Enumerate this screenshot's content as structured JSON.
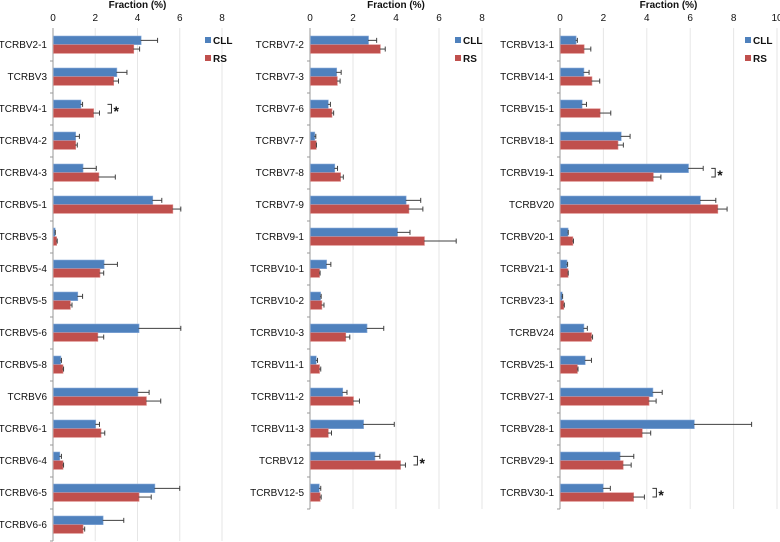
{
  "chart_data": {
    "type": "bar",
    "orientation": "horizontal",
    "colors": {
      "CLL": "#4f81bd",
      "RS": "#c0504d",
      "error_bar": "#404040",
      "grid": "#e6e6e6",
      "axis": "#999999"
    },
    "panels": [
      {
        "title": "Fraction (%)",
        "xlabel": "Fraction (%)",
        "xlim": [
          0,
          8
        ],
        "xticks": [
          0,
          2,
          4,
          6,
          8
        ],
        "legend": [
          "CLL",
          "RS"
        ],
        "legend_position": "top-right",
        "categories": [
          "TCRBV2-1",
          "TCRBV3",
          "TCRBV4-1",
          "TCRBV4-2",
          "TCRBV4-3",
          "TCRBV5-1",
          "TCRBV5-3",
          "TCRBV5-4",
          "TCRBV5-5",
          "TCRBV5-6",
          "TCRBV5-8",
          "TCRBV6",
          "TCRBV6-1",
          "TCRBV6-4",
          "TCRBV6-5",
          "TCRBV6-6"
        ],
        "series": [
          {
            "name": "CLL",
            "values": [
              4.15,
              3.0,
              1.3,
              1.05,
              1.4,
              4.7,
              0.08,
              2.4,
              1.15,
              4.05,
              0.35,
              4.0,
              2.0,
              0.3,
              4.8,
              2.35
            ],
            "errors": [
              0.8,
              0.5,
              0.1,
              0.2,
              0.65,
              0.45,
              0.03,
              0.65,
              0.25,
              2.0,
              0.05,
              0.55,
              0.2,
              0.1,
              1.2,
              1.0
            ]
          },
          {
            "name": "RS",
            "values": [
              3.8,
              2.85,
              1.9,
              1.05,
              2.15,
              5.65,
              0.15,
              2.2,
              0.8,
              2.1,
              0.45,
              4.4,
              2.25,
              0.45,
              4.05,
              1.4
            ],
            "errors": [
              0.3,
              0.25,
              0.3,
              0.1,
              0.8,
              0.4,
              0.05,
              0.2,
              0.1,
              0.3,
              0.05,
              0.7,
              0.2,
              0.05,
              0.6,
              0.1
            ]
          }
        ],
        "significant": [
          "TCRBV4-1"
        ],
        "significance_marker": "*"
      },
      {
        "title": "Fraction (%)",
        "xlabel": "Fraction (%)",
        "xlim": [
          0,
          8
        ],
        "xticks": [
          0,
          2,
          4,
          6,
          8
        ],
        "legend": [
          "CLL",
          "RS"
        ],
        "legend_position": "top-right",
        "categories": [
          "TCRBV7-2",
          "TCRBV7-3",
          "TCRBV7-6",
          "TCRBV7-7",
          "TCRBV7-8",
          "TCRBV7-9",
          "TCRBV9-1",
          "TCRBV10-1",
          "TCRBV10-2",
          "TCRBV10-3",
          "TCRBV11-1",
          "TCRBV11-2",
          "TCRBV11-3",
          "TCRBV12",
          "TCRBV12-5"
        ],
        "series": [
          {
            "name": "CLL",
            "values": [
              2.7,
              1.22,
              0.83,
              0.2,
              1.13,
              4.45,
              4.05,
              0.75,
              0.47,
              2.63,
              0.27,
              1.5,
              2.47,
              3.0,
              0.41
            ],
            "errors": [
              0.4,
              0.23,
              0.12,
              0.07,
              0.15,
              0.7,
              0.6,
              0.22,
              0.05,
              0.8,
              0.08,
              0.22,
              1.45,
              0.25,
              0.09
            ]
          },
          {
            "name": "RS",
            "values": [
              3.25,
              1.25,
              1.0,
              0.27,
              1.4,
              4.58,
              5.3,
              0.42,
              0.53,
              1.64,
              0.42,
              2.0,
              0.83,
              4.19,
              0.45
            ],
            "errors": [
              0.25,
              0.15,
              0.1,
              0.03,
              0.15,
              0.67,
              1.5,
              0.05,
              0.12,
              0.21,
              0.08,
              0.3,
              0.17,
              0.25,
              0.07
            ]
          }
        ],
        "significant": [
          "TCRBV12"
        ],
        "significance_marker": "*"
      },
      {
        "title": "Fraction (%)",
        "xlabel": "Fraction (%)",
        "xlim": [
          0,
          10
        ],
        "xticks": [
          0,
          2,
          4,
          6,
          8,
          10
        ],
        "legend": [
          "CLL",
          "RS"
        ],
        "legend_position": "top-right",
        "categories": [
          "TCRBV13-1",
          "TCRBV14-1",
          "TCRBV15-1",
          "TCRBV18-1",
          "TCRBV19-1",
          "TCRBV20",
          "TCRBV20-1",
          "TCRBV21-1",
          "TCRBV23-1",
          "TCRBV24",
          "TCRBV25-1",
          "TCRBV27-1",
          "TCRBV28-1",
          "TCRBV29-1",
          "TCRBV30-1"
        ],
        "series": [
          {
            "name": "CLL",
            "values": [
              0.72,
              1.08,
              1.0,
              2.8,
              5.9,
              6.45,
              0.35,
              0.3,
              0.08,
              1.08,
              1.14,
              4.26,
              6.17,
              2.75,
              1.97
            ],
            "errors": [
              0.08,
              0.26,
              0.22,
              0.43,
              0.7,
              0.73,
              0.03,
              0.05,
              0.04,
              0.18,
              0.31,
              0.45,
              2.66,
              0.65,
              0.35
            ]
          },
          {
            "name": "RS",
            "values": [
              1.09,
              1.45,
              1.83,
              2.65,
              4.28,
              7.25,
              0.57,
              0.35,
              0.15,
              1.43,
              0.78,
              4.08,
              3.77,
              2.89,
              3.37
            ],
            "errors": [
              0.33,
              0.38,
              0.51,
              0.27,
              0.37,
              0.45,
              0.05,
              0.03,
              0.05,
              0.07,
              0.05,
              0.35,
              0.41,
              0.39,
              0.52
            ]
          }
        ],
        "significant": [
          "TCRBV19-1",
          "TCRBV30-1"
        ],
        "significance_marker": "*"
      }
    ]
  }
}
